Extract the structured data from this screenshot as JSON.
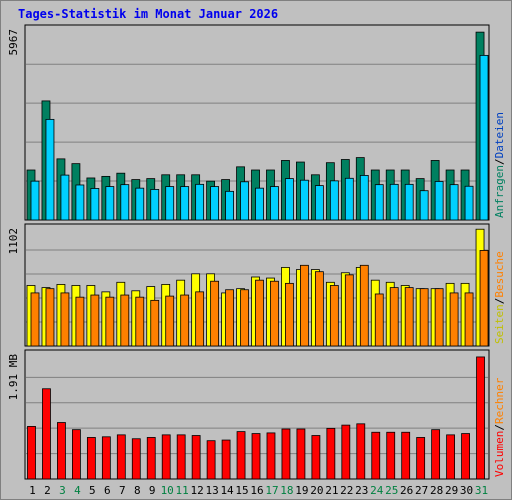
{
  "title": "Tages-Statistik im Monat Januar 2026",
  "chart_data": {
    "type": "bar",
    "title": "Tages-Statistik im Monat Januar 2026",
    "days": [
      "1",
      "2",
      "3",
      "4",
      "5",
      "6",
      "7",
      "8",
      "9",
      "10",
      "11",
      "12",
      "13",
      "14",
      "15",
      "16",
      "17",
      "18",
      "19",
      "20",
      "21",
      "22",
      "23",
      "24",
      "25",
      "26",
      "27",
      "28",
      "29",
      "30",
      "31"
    ],
    "weekend_days": [
      "3",
      "4",
      "10",
      "11",
      "17",
      "18",
      "24",
      "25",
      "31"
    ],
    "colors": {
      "background": "#c0c0c0",
      "title": "#0000ee",
      "day_normal": "#000000",
      "day_weekend": "#008040",
      "gridline": "#808080",
      "anfragen": "#008060",
      "dateien": "#00d0ff",
      "seiten": "#ffff00",
      "besuche": "#ff8000",
      "rechner": "#ff8000",
      "volumen": "#ff0000"
    },
    "panels": [
      {
        "id": "hits",
        "max_label": "5967",
        "max_value": 5967,
        "legend": [
          {
            "text": "Anfragen",
            "color": "#008060"
          },
          {
            "text": "/",
            "color": "#000000"
          },
          {
            "text": "Dateien",
            "color": "#0040c0"
          }
        ],
        "series": [
          {
            "key": "Anfragen",
            "color": "#008060",
            "values": [
              1570,
              3740,
              1920,
              1770,
              1320,
              1370,
              1470,
              1270,
              1300,
              1420,
              1420,
              1420,
              1220,
              1270,
              1670,
              1570,
              1570,
              1870,
              1820,
              1420,
              1800,
              1900,
              1960,
              1570,
              1570,
              1570,
              1300,
              1870,
              1570,
              1570,
              5900
            ]
          },
          {
            "key": "Dateien",
            "color": "#00d0ff",
            "values": [
              1220,
              3160,
              1410,
              1100,
              990,
              1050,
              1110,
              1000,
              960,
              1050,
              1050,
              1120,
              1050,
              900,
              1200,
              1000,
              1050,
              1300,
              1250,
              1080,
              1230,
              1310,
              1400,
              1110,
              1120,
              1120,
              920,
              1210,
              1110,
              1060,
              5170
            ]
          }
        ]
      },
      {
        "id": "visits",
        "max_label": "1102",
        "max_value": 1102,
        "legend": [
          {
            "text": "Seiten",
            "color": "#c0c000"
          },
          {
            "text": "/",
            "color": "#000000"
          },
          {
            "text": "Besuche",
            "color": "#ff8000"
          }
        ],
        "series": [
          {
            "key": "Seiten",
            "color": "#ffff00",
            "values": [
              570,
              550,
              580,
              570,
              570,
              510,
              600,
              520,
              560,
              580,
              620,
              680,
              680,
              500,
              540,
              650,
              640,
              740,
              720,
              720,
              600,
              690,
              740,
              620,
              600,
              570,
              540,
              540,
              590,
              590,
              1100
            ]
          },
          {
            "key": "Besuche",
            "color": "#ff8000",
            "values": [
              500,
              540,
              500,
              460,
              480,
              460,
              480,
              460,
              430,
              470,
              480,
              510,
              610,
              530,
              530,
              620,
              610,
              590,
              760,
              700,
              570,
              670,
              760,
              490,
              550,
              550,
              540,
              540,
              500,
              500,
              900
            ]
          }
        ]
      },
      {
        "id": "volume",
        "max_label": "1.91 MB",
        "max_value": 1.91,
        "legend": [
          {
            "text": "Volumen",
            "color": "#ff0000"
          },
          {
            "text": "/",
            "color": "#000000"
          },
          {
            "text": "Rechner",
            "color": "#ff8000"
          }
        ],
        "series": [
          {
            "key": "Volumen",
            "color": "#ff0000",
            "values": [
              0.81,
              1.39,
              0.87,
              0.76,
              0.64,
              0.65,
              0.68,
              0.62,
              0.64,
              0.68,
              0.68,
              0.67,
              0.59,
              0.6,
              0.73,
              0.7,
              0.71,
              0.77,
              0.77,
              0.67,
              0.78,
              0.83,
              0.85,
              0.72,
              0.72,
              0.72,
              0.64,
              0.76,
              0.68,
              0.7,
              1.88
            ]
          }
        ]
      }
    ]
  }
}
